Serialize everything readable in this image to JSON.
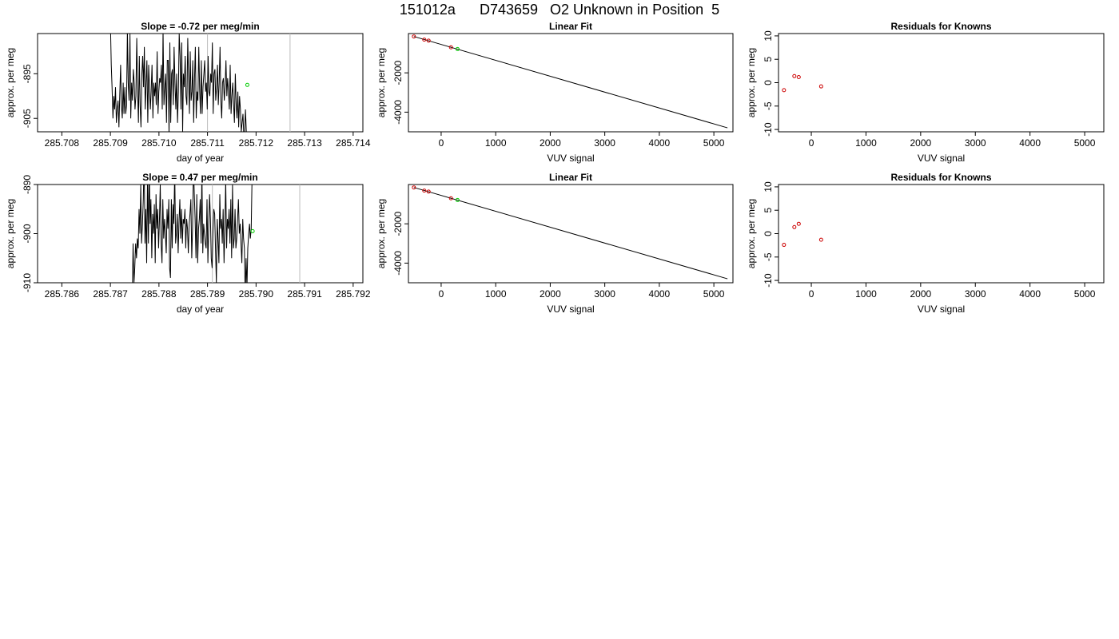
{
  "header": {
    "title": "151012a      D743659   O2 Unknown in Position  5"
  },
  "colors": {
    "axis": "#000000",
    "series": "#000000",
    "known_points": "#cc0000",
    "unknown_point": "#00cc00",
    "marker_lines": "#bbbbbb"
  },
  "chart_data": [
    {
      "type": "line",
      "title": "Slope =  -0.72  per meg/min",
      "xlabel": "day of year",
      "ylabel": "approx. per meg",
      "xlim": [
        285.7075,
        285.7142
      ],
      "ylim": [
        -908,
        -886
      ],
      "xticks": [
        "285.708",
        "285.709",
        "285.710",
        "285.711",
        "285.712",
        "285.713",
        "285.714"
      ],
      "yticks": [
        "-895",
        "-905"
      ],
      "grid": false,
      "vlines": [
        285.711,
        285.7127
      ],
      "series": [
        {
          "x_start": 285.709,
          "x_step": 1.75e-05,
          "values": [
            -883,
            -893,
            -898,
            -905,
            -900,
            -903,
            -898,
            -906,
            -903,
            -901,
            -907,
            -900,
            -893,
            -902,
            -905,
            -897,
            -904,
            -898,
            -904,
            -902,
            -885,
            -897,
            -901,
            -886,
            -905,
            -897,
            -901,
            -894,
            -897,
            -903,
            -900,
            -887,
            -898,
            -906,
            -891,
            -902,
            -907,
            -895,
            -891,
            -898,
            -889,
            -903,
            -897,
            -892,
            -906,
            -893,
            -898,
            -903,
            -899,
            -893,
            -905,
            -897,
            -900,
            -897,
            -902,
            -890,
            -904,
            -899,
            -896,
            -897,
            -893,
            -903,
            -885,
            -902,
            -898,
            -895,
            -906,
            -892,
            -892,
            -909,
            -888,
            -906,
            -895,
            -894,
            -902,
            -889,
            -897,
            -903,
            -895,
            -906,
            -899,
            -886,
            -891,
            -903,
            -888,
            -908,
            -895,
            -898,
            -891,
            -900,
            -902,
            -887,
            -896,
            -904,
            -890,
            -901,
            -899,
            -892,
            -906,
            -896,
            -889,
            -905,
            -899,
            -901,
            -889,
            -898,
            -904,
            -892,
            -904,
            -898,
            -895,
            -892,
            -899,
            -897,
            -903,
            -891,
            -899,
            -900,
            -895,
            -897,
            -888,
            -904,
            -895,
            -894,
            -901,
            -898,
            -893,
            -902,
            -897,
            -889,
            -901,
            -905,
            -897,
            -896,
            -901,
            -898,
            -892,
            -900,
            -896,
            -899,
            -903,
            -893,
            -904,
            -900,
            -897,
            -902,
            -906,
            -895,
            -902,
            -905,
            -899,
            -907,
            -900,
            -903,
            -908,
            -906,
            -904,
            -909,
            -908,
            -903,
            -908,
            -909
          ]
        }
      ],
      "unknown_point": {
        "x": 285.71182,
        "y": -897.5
      }
    },
    {
      "type": "scatter",
      "title": "Linear Fit",
      "xlabel": "VUV signal",
      "ylabel": "approx. per meg",
      "xlim": [
        -600,
        5350
      ],
      "ylim": [
        -5000,
        0
      ],
      "xticks": [
        "0",
        "1000",
        "2000",
        "3000",
        "4000",
        "5000"
      ],
      "yticks": [
        "-2000",
        "-4000"
      ],
      "known_points": {
        "x": [
          -500,
          -310,
          -230,
          180
        ],
        "y": [
          -150,
          -310,
          -360,
          -700
        ]
      },
      "unknown_point": {
        "x": 300,
        "y": -790
      },
      "fit_line": {
        "x": [
          -500,
          5250
        ],
        "y": [
          -150,
          -4800
        ]
      }
    },
    {
      "type": "scatter",
      "title": "Residuals for Knowns",
      "xlabel": "VUV signal",
      "ylabel": "approx. per meg",
      "xlim": [
        -600,
        5350
      ],
      "ylim": [
        -10.5,
        10.5
      ],
      "xticks": [
        "0",
        "1000",
        "2000",
        "3000",
        "4000",
        "5000"
      ],
      "yticks": [
        "-10",
        "-5",
        "0",
        "5",
        "10"
      ],
      "known_points": {
        "x": [
          -500,
          -310,
          -230,
          180
        ],
        "y": [
          -1.6,
          1.4,
          1.2,
          -0.8
        ]
      }
    },
    {
      "type": "line",
      "title": "Slope =  0.47  per meg/min",
      "xlabel": "day of year",
      "ylabel": "approx. per meg",
      "xlim": [
        285.7855,
        285.7922
      ],
      "ylim": [
        -910,
        -890
      ],
      "xticks": [
        "285.786",
        "285.787",
        "285.788",
        "285.789",
        "285.790",
        "285.791",
        "285.792"
      ],
      "yticks": [
        "-890",
        "-900",
        "-910"
      ],
      "grid": false,
      "vlines": [
        285.7891,
        285.7909
      ],
      "series": [
        {
          "x_start": 285.78745,
          "x_step": 1.75e-05,
          "values": [
            -913,
            -902,
            -910,
            -907,
            -902,
            -905,
            -901,
            -903,
            -895,
            -900,
            -890,
            -902,
            -898,
            -893,
            -884,
            -902,
            -895,
            -906,
            -888,
            -902,
            -886,
            -898,
            -893,
            -905,
            -896,
            -900,
            -894,
            -906,
            -892,
            -899,
            -895,
            -903,
            -897,
            -890,
            -902,
            -906,
            -893,
            -901,
            -897,
            -900,
            -904,
            -895,
            -899,
            -893,
            -907,
            -909,
            -893,
            -903,
            -894,
            -898,
            -887,
            -902,
            -900,
            -896,
            -904,
            -898,
            -893,
            -901,
            -895,
            -902,
            -897,
            -898,
            -895,
            -903,
            -897,
            -899,
            -904,
            -898,
            -896,
            -893,
            -905,
            -899,
            -886,
            -892,
            -897,
            -905,
            -892,
            -906,
            -899,
            -897,
            -893,
            -902,
            -887,
            -904,
            -898,
            -900,
            -902,
            -903,
            -893,
            -906,
            -899,
            -892,
            -897,
            -905,
            -907,
            -900,
            -895,
            -896,
            -903,
            -910,
            -897,
            -901,
            -906,
            -892,
            -899,
            -897,
            -902,
            -895,
            -906,
            -899,
            -889,
            -903,
            -897,
            -899,
            -895,
            -902,
            -893,
            -905,
            -890,
            -903,
            -901,
            -895,
            -903,
            -901,
            -897,
            -893,
            -900,
            -898,
            -902,
            -906,
            -897,
            -901,
            -903,
            -913,
            -905,
            -911,
            -903,
            -900,
            -898,
            -901,
            -899,
            -889,
            -886
          ]
        }
      ],
      "unknown_point": {
        "x": 285.78993,
        "y": -899.5
      }
    },
    {
      "type": "scatter",
      "title": "Linear Fit",
      "xlabel": "VUV signal",
      "ylabel": "approx. per meg",
      "xlim": [
        -600,
        5350
      ],
      "ylim": [
        -5000,
        0
      ],
      "xticks": [
        "0",
        "1000",
        "2000",
        "3000",
        "4000",
        "5000"
      ],
      "yticks": [
        "-2000",
        "-4000"
      ],
      "known_points": {
        "x": [
          -500,
          -310,
          -230,
          180
        ],
        "y": [
          -150,
          -310,
          -360,
          -700
        ]
      },
      "unknown_point": {
        "x": 300,
        "y": -790
      },
      "fit_line": {
        "x": [
          -500,
          5250
        ],
        "y": [
          -150,
          -4800
        ]
      }
    },
    {
      "type": "scatter",
      "title": "Residuals for Knowns",
      "xlabel": "VUV signal",
      "ylabel": "approx. per meg",
      "xlim": [
        -600,
        5350
      ],
      "ylim": [
        -10.5,
        10.5
      ],
      "xticks": [
        "0",
        "1000",
        "2000",
        "3000",
        "4000",
        "5000"
      ],
      "yticks": [
        "-10",
        "-5",
        "0",
        "5",
        "10"
      ],
      "known_points": {
        "x": [
          -500,
          -310,
          -230,
          180
        ],
        "y": [
          -2.4,
          1.4,
          2.1,
          -1.3
        ]
      }
    }
  ]
}
